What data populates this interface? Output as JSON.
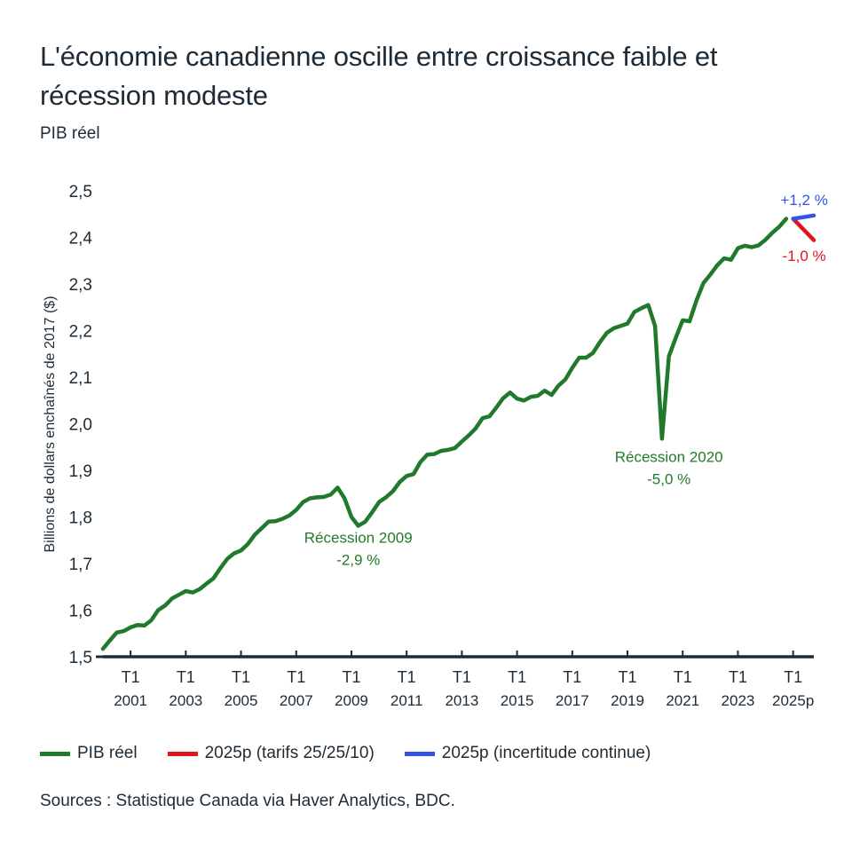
{
  "header": {
    "title": "L'économie canadienne oscille entre croissance faible et récession modeste",
    "subtitle": "PIB réel"
  },
  "colors": {
    "gdp": "#217a2b",
    "tariff": "#e0141e",
    "uncertainty": "#3554e0",
    "axis": "#1d2b36",
    "text": "#1d2b36"
  },
  "legend": [
    {
      "label": "PIB réel",
      "color": "#217a2b"
    },
    {
      "label": "2025p (tarifs 25/25/10)",
      "color": "#e0141e"
    },
    {
      "label": "2025p (incertitude continue)",
      "color": "#3554e0"
    }
  ],
  "source": "Sources : Statistique Canada via Haver Analytics, BDC.",
  "chart_data": {
    "type": "line",
    "title": "L'économie canadienne oscille entre croissance faible et récession modeste",
    "subtitle": "PIB réel",
    "xlabel": "",
    "ylabel": "Billions de dollars enchaînés de 2017 ($)",
    "ylim": [
      1.5,
      2.5
    ],
    "yticks": [
      "1,5",
      "1,6",
      "1,7",
      "1,8",
      "1,9",
      "2,0",
      "2,1",
      "2,2",
      "2,3",
      "2,4",
      "2,5"
    ],
    "ytick_values": [
      1.5,
      1.6,
      1.7,
      1.8,
      1.9,
      2.0,
      2.1,
      2.2,
      2.3,
      2.4,
      2.5
    ],
    "xlim": [
      2000.0,
      2025.75
    ],
    "xticks": [
      {
        "value": 2001,
        "line1": "T1",
        "line2": "2001"
      },
      {
        "value": 2003,
        "line1": "T1",
        "line2": "2003"
      },
      {
        "value": 2005,
        "line1": "T1",
        "line2": "2005"
      },
      {
        "value": 2007,
        "line1": "T1",
        "line2": "2007"
      },
      {
        "value": 2009,
        "line1": "T1",
        "line2": "2009"
      },
      {
        "value": 2011,
        "line1": "T1",
        "line2": "2011"
      },
      {
        "value": 2013,
        "line1": "T1",
        "line2": "2013"
      },
      {
        "value": 2015,
        "line1": "T1",
        "line2": "2015"
      },
      {
        "value": 2017,
        "line1": "T1",
        "line2": "2017"
      },
      {
        "value": 2019,
        "line1": "T1",
        "line2": "2019"
      },
      {
        "value": 2021,
        "line1": "T1",
        "line2": "2021"
      },
      {
        "value": 2023,
        "line1": "T1",
        "line2": "2023"
      },
      {
        "value": 2025,
        "line1": "T1",
        "line2": "2025p"
      }
    ],
    "grid": false,
    "legend_position": "bottom",
    "series": [
      {
        "name": "PIB réel",
        "color": "#217a2b",
        "x_start": 2000.0,
        "x_step": 0.25,
        "values": [
          1.517,
          1.535,
          1.552,
          1.555,
          1.563,
          1.568,
          1.567,
          1.578,
          1.6,
          1.61,
          1.625,
          1.633,
          1.641,
          1.638,
          1.645,
          1.657,
          1.668,
          1.69,
          1.71,
          1.722,
          1.728,
          1.742,
          1.762,
          1.776,
          1.79,
          1.791,
          1.796,
          1.803,
          1.815,
          1.832,
          1.84,
          1.842,
          1.843,
          1.848,
          1.863,
          1.84,
          1.8,
          1.781,
          1.79,
          1.81,
          1.832,
          1.842,
          1.855,
          1.875,
          1.888,
          1.892,
          1.918,
          1.934,
          1.935,
          1.942,
          1.944,
          1.948,
          1.962,
          1.975,
          1.99,
          2.012,
          2.016,
          2.035,
          2.055,
          2.067,
          2.054,
          2.05,
          2.058,
          2.06,
          2.071,
          2.062,
          2.082,
          2.095,
          2.12,
          2.142,
          2.142,
          2.152,
          2.175,
          2.195,
          2.205,
          2.21,
          2.215,
          2.24,
          2.248,
          2.255,
          2.21,
          1.968,
          2.145,
          2.185,
          2.222,
          2.22,
          2.265,
          2.302,
          2.32,
          2.34,
          2.355,
          2.352,
          2.377,
          2.382,
          2.379,
          2.383,
          2.395,
          2.41,
          2.423,
          2.44
        ]
      },
      {
        "name": "2025p (tarifs 25/25/10)",
        "color": "#e0141e",
        "x": [
          2025.0,
          2025.75
        ],
        "values": [
          2.44,
          2.394
        ]
      },
      {
        "name": "2025p (incertitude continue)",
        "color": "#3554e0",
        "x": [
          2025.0,
          2025.75
        ],
        "values": [
          2.44,
          2.447
        ]
      }
    ],
    "annotations": [
      {
        "line1": "Récession 2009",
        "line2": "-2,9 %",
        "x": 2009.25,
        "y": 1.745,
        "color": "#217a2b"
      },
      {
        "line1": "Récession 2020",
        "line2": "-5,0 %",
        "x": 2020.5,
        "y": 1.918,
        "color": "#217a2b"
      },
      {
        "line1": "+1,2 %",
        "x": 2025.4,
        "y": 2.47,
        "color": "#3554e0"
      },
      {
        "line1": "-1,0 %",
        "x": 2025.4,
        "y": 2.35,
        "color": "#e0141e"
      }
    ]
  }
}
